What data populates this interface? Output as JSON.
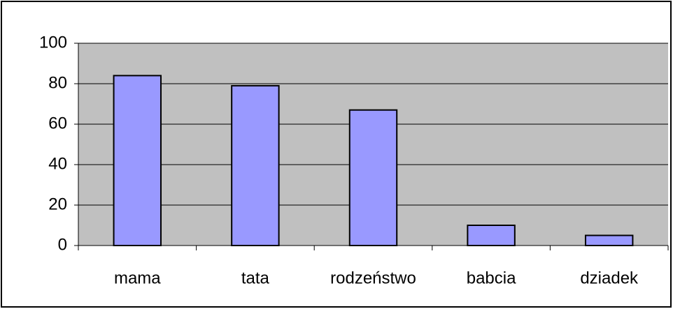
{
  "chart_data": {
    "type": "bar",
    "categories": [
      "mama",
      "tata",
      "rodzeństwo",
      "babcia",
      "dziadek"
    ],
    "values": [
      84,
      79,
      67,
      10,
      5
    ],
    "color": "#9999ff",
    "ylim": [
      0,
      100
    ],
    "yticks": [
      0,
      20,
      40,
      60,
      80,
      100
    ],
    "grid": true
  }
}
